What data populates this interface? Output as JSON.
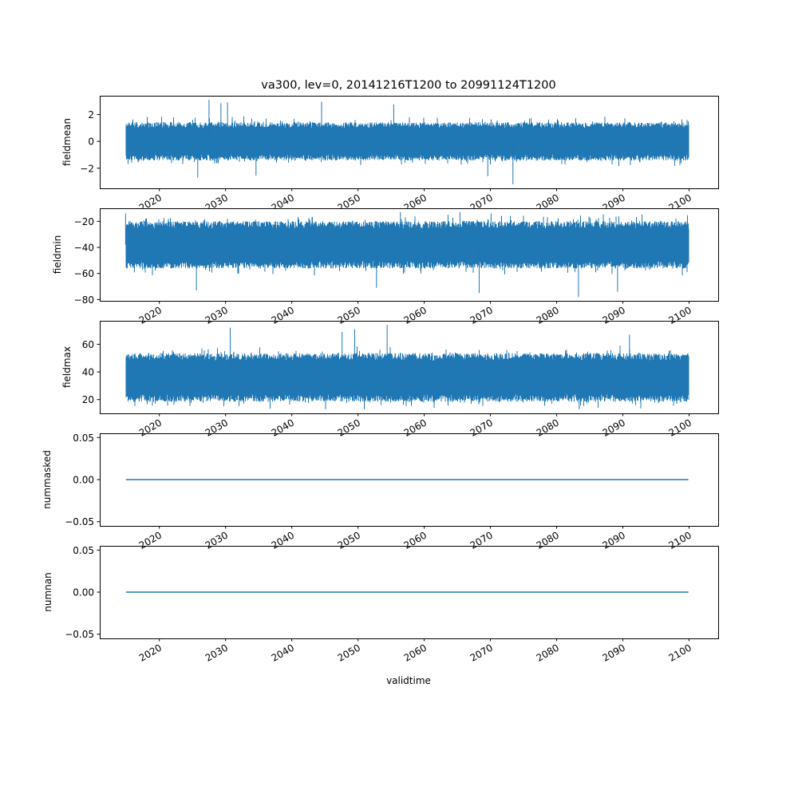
{
  "chart_data": {
    "type": "line",
    "title": "va300, lev=0, 20141216T1200 to 20991124T1200",
    "xlabel": "validtime",
    "x_tick_labels": [
      "2020",
      "2030",
      "2040",
      "2050",
      "2060",
      "2070",
      "2080",
      "2090",
      "2100"
    ],
    "x_ticks": [
      2020,
      2030,
      2040,
      2050,
      2060,
      2070,
      2080,
      2090,
      2100
    ],
    "xlim": [
      2011.0,
      2104.4
    ],
    "x_range": [
      "2014-12-16T12:00",
      "2099-11-24T12:00"
    ],
    "color": "#1f77b4",
    "subplots": [
      {
        "ylabel": "fieldmean",
        "ylim": [
          -3.5,
          3.4
        ],
        "y_ticks": [
          2,
          0,
          -2
        ],
        "y_tick_labels": [
          "2",
          "0",
          "−2"
        ],
        "series": {
          "center": 0.0,
          "low": -1.3,
          "high": 1.3,
          "min": -3.2,
          "max": 3.1,
          "spikes_high": [
            [
              2027.5,
              3.1
            ],
            [
              2030.3,
              2.9
            ],
            [
              2029.3,
              2.85
            ],
            [
              2044.5,
              2.95
            ],
            [
              2055.4,
              2.75
            ]
          ],
          "spikes_low": [
            [
              2073.4,
              -3.2
            ],
            [
              2025.8,
              -2.7
            ],
            [
              2069.6,
              -2.6
            ],
            [
              2034.6,
              -2.55
            ]
          ]
        }
      },
      {
        "ylabel": "fieldmin",
        "ylim": [
          -81,
          -10
        ],
        "y_ticks": [
          -20,
          -40,
          -60,
          -80
        ],
        "y_tick_labels": [
          "−20",
          "−40",
          "−60",
          "−80"
        ],
        "series": {
          "center": -38,
          "low": -55,
          "high": -22,
          "min": -78,
          "max": -13,
          "spikes_high": [
            [
              2014.9,
              -14
            ],
            [
              2056.4,
              -13
            ],
            [
              2065.4,
              -13
            ],
            [
              2070.1,
              -14
            ]
          ],
          "spikes_low": [
            [
              2083.3,
              -78
            ],
            [
              2025.6,
              -73
            ],
            [
              2068.3,
              -75
            ],
            [
              2089.2,
              -74
            ],
            [
              2052.8,
              -71
            ]
          ]
        }
      },
      {
        "ylabel": "fieldmax",
        "ylim": [
          10,
          77
        ],
        "y_ticks": [
          20,
          40,
          60
        ],
        "y_tick_labels": [
          "20",
          "40",
          "60"
        ],
        "series": {
          "center": 36,
          "low": 20,
          "high": 52,
          "min": 13,
          "max": 74,
          "spikes_high": [
            [
              2054.4,
              74
            ],
            [
              2030.7,
              72
            ],
            [
              2049.5,
              71
            ],
            [
              2047.6,
              69
            ],
            [
              2091.0,
              67
            ]
          ],
          "spikes_low": [
            [
              2045.1,
              13
            ],
            [
              2083.4,
              13
            ],
            [
              2061.5,
              14
            ]
          ]
        }
      },
      {
        "ylabel": "nummasked",
        "ylim": [
          -0.055,
          0.055
        ],
        "y_ticks": [
          0.05,
          0.0,
          -0.05
        ],
        "y_tick_labels": [
          "0.05",
          "0.00",
          "−0.05"
        ],
        "series": {
          "constant": 0.0
        }
      },
      {
        "ylabel": "numnan",
        "ylim": [
          -0.055,
          0.055
        ],
        "y_ticks": [
          0.05,
          0.0,
          -0.05
        ],
        "y_tick_labels": [
          "0.05",
          "0.00",
          "−0.05"
        ],
        "series": {
          "constant": 0.0
        }
      }
    ]
  }
}
